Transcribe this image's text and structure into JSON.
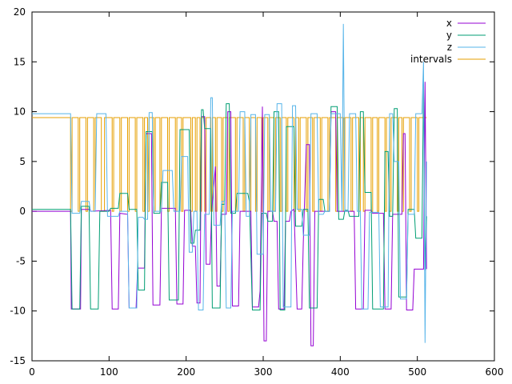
{
  "chart_data": {
    "type": "line",
    "title": "",
    "xlabel": "",
    "ylabel": "",
    "xlim": [
      0,
      600
    ],
    "ylim": [
      -15,
      20
    ],
    "xticks": [
      0,
      100,
      200,
      300,
      400,
      500,
      600
    ],
    "yticks": [
      -15,
      -10,
      -5,
      0,
      5,
      10,
      15,
      20
    ],
    "grid": false,
    "legend_position": "top-right",
    "series": [
      {
        "name": "x",
        "color": "#9400d3",
        "points": [
          [
            0,
            0
          ],
          [
            50,
            0
          ],
          [
            51,
            -9.8
          ],
          [
            63,
            -9.8
          ],
          [
            64,
            0.2
          ],
          [
            75,
            0.2
          ],
          [
            76,
            0
          ],
          [
            102,
            0.1
          ],
          [
            104,
            -9.8
          ],
          [
            112,
            -9.8
          ],
          [
            114,
            -0.2
          ],
          [
            124,
            -0.3
          ],
          [
            126,
            -9.7
          ],
          [
            135,
            -9.7
          ],
          [
            137,
            -5.7
          ],
          [
            146,
            -5.7
          ],
          [
            148,
            7.8
          ],
          [
            155,
            7.8
          ],
          [
            157,
            -9.4
          ],
          [
            166,
            -9.4
          ],
          [
            168,
            0.3
          ],
          [
            186,
            0.3
          ],
          [
            188,
            -9.3
          ],
          [
            196,
            -9.3
          ],
          [
            198,
            0.1
          ],
          [
            206,
            0.1
          ],
          [
            208,
            -3.5
          ],
          [
            212,
            -3.5
          ],
          [
            214,
            -9.2
          ],
          [
            218,
            -9.2
          ],
          [
            220,
            9.5
          ],
          [
            224,
            9.5
          ],
          [
            226,
            -5.3
          ],
          [
            231,
            -5.3
          ],
          [
            233,
            0
          ],
          [
            238,
            4.5
          ],
          [
            240,
            -7.5
          ],
          [
            244,
            -7.5
          ],
          [
            246,
            -0.3
          ],
          [
            252,
            -0.3
          ],
          [
            254,
            10
          ],
          [
            258,
            10
          ],
          [
            260,
            -9.5
          ],
          [
            268,
            -9.5
          ],
          [
            270,
            0
          ],
          [
            284,
            0
          ],
          [
            286,
            -9.6
          ],
          [
            294,
            -9.6
          ],
          [
            296,
            -8
          ],
          [
            299,
            10.5
          ],
          [
            301,
            -13
          ],
          [
            304,
            -13
          ],
          [
            306,
            0
          ],
          [
            312,
            0
          ],
          [
            314,
            -1
          ],
          [
            318,
            -1
          ],
          [
            320,
            -9.8
          ],
          [
            327,
            -9.8
          ],
          [
            329,
            -1
          ],
          [
            334,
            -1
          ],
          [
            336,
            0
          ],
          [
            340,
            0.2
          ],
          [
            344,
            -9.8
          ],
          [
            350,
            -9.8
          ],
          [
            352,
            -3.2
          ],
          [
            356,
            6.7
          ],
          [
            360,
            6.7
          ],
          [
            362,
            -13.5
          ],
          [
            365,
            -13.5
          ],
          [
            367,
            0
          ],
          [
            386,
            0
          ],
          [
            388,
            10
          ],
          [
            394,
            10
          ],
          [
            396,
            0
          ],
          [
            418,
            0
          ],
          [
            420,
            -9.8
          ],
          [
            430,
            -9.8
          ],
          [
            432,
            0.1
          ],
          [
            440,
            0.1
          ],
          [
            442,
            -0.2
          ],
          [
            456,
            -0.2
          ],
          [
            458,
            -9.8
          ],
          [
            466,
            -9.8
          ],
          [
            468,
            -0.3
          ],
          [
            480,
            -0.3
          ],
          [
            482,
            7.8
          ],
          [
            484,
            7.8
          ],
          [
            486,
            -9.9
          ],
          [
            494,
            -9.9
          ],
          [
            496,
            -5.8
          ],
          [
            508,
            -5.8
          ],
          [
            510,
            13
          ],
          [
            512,
            -5.8
          ]
        ]
      },
      {
        "name": "y",
        "color": "#009e73",
        "points": [
          [
            0,
            0.2
          ],
          [
            50,
            0.2
          ],
          [
            52,
            -9.8
          ],
          [
            62,
            -9.8
          ],
          [
            64,
            0.5
          ],
          [
            74,
            0.5
          ],
          [
            76,
            -9.8
          ],
          [
            86,
            -9.8
          ],
          [
            88,
            0
          ],
          [
            100,
            0
          ],
          [
            102,
            0.3
          ],
          [
            112,
            0.3
          ],
          [
            114,
            1.8
          ],
          [
            124,
            1.8
          ],
          [
            126,
            0.2
          ],
          [
            136,
            0.2
          ],
          [
            138,
            -7.9
          ],
          [
            146,
            -7.9
          ],
          [
            148,
            8
          ],
          [
            156,
            8
          ],
          [
            158,
            -0.2
          ],
          [
            166,
            -0.2
          ],
          [
            168,
            2.9
          ],
          [
            176,
            2.9
          ],
          [
            178,
            -8.9
          ],
          [
            190,
            -8.9
          ],
          [
            192,
            8.2
          ],
          [
            204,
            8.2
          ],
          [
            206,
            -3.2
          ],
          [
            210,
            -3.2
          ],
          [
            212,
            -1.9
          ],
          [
            218,
            -1.9
          ],
          [
            220,
            10.2
          ],
          [
            222,
            10.2
          ],
          [
            224,
            8.3
          ],
          [
            232,
            8.3
          ],
          [
            234,
            -9.7
          ],
          [
            244,
            -9.7
          ],
          [
            246,
            0.7
          ],
          [
            250,
            0.7
          ],
          [
            252,
            10.8
          ],
          [
            256,
            10.8
          ],
          [
            258,
            -0.2
          ],
          [
            264,
            -0.2
          ],
          [
            266,
            1.8
          ],
          [
            280,
            1.8
          ],
          [
            282,
            1
          ],
          [
            286,
            -9.9
          ],
          [
            296,
            -9.9
          ],
          [
            298,
            -0.2
          ],
          [
            304,
            -0.2
          ],
          [
            306,
            -1
          ],
          [
            312,
            -1
          ],
          [
            314,
            10
          ],
          [
            320,
            10
          ],
          [
            322,
            -9.9
          ],
          [
            328,
            -9.9
          ],
          [
            330,
            8.5
          ],
          [
            340,
            8.5
          ],
          [
            342,
            -1.5
          ],
          [
            350,
            -1.5
          ],
          [
            352,
            0.2
          ],
          [
            358,
            0.2
          ],
          [
            360,
            -9.7
          ],
          [
            370,
            -9.7
          ],
          [
            372,
            1.2
          ],
          [
            378,
            1.2
          ],
          [
            380,
            0
          ],
          [
            386,
            0
          ],
          [
            388,
            10.5
          ],
          [
            396,
            10.5
          ],
          [
            398,
            -0.8
          ],
          [
            404,
            -0.8
          ],
          [
            406,
            0.1
          ],
          [
            410,
            0.1
          ],
          [
            412,
            -0.5
          ],
          [
            424,
            -0.5
          ],
          [
            426,
            10
          ],
          [
            430,
            10
          ],
          [
            432,
            1.9
          ],
          [
            440,
            1.9
          ],
          [
            442,
            -9.8
          ],
          [
            456,
            -9.8
          ],
          [
            458,
            6
          ],
          [
            462,
            6
          ],
          [
            464,
            -0.5
          ],
          [
            468,
            -0.5
          ],
          [
            470,
            10.3
          ],
          [
            474,
            10.3
          ],
          [
            476,
            -8.6
          ],
          [
            486,
            -8.6
          ],
          [
            488,
            0.2
          ],
          [
            496,
            0.2
          ],
          [
            498,
            -2.7
          ],
          [
            506,
            -2.7
          ],
          [
            508,
            12.8
          ],
          [
            510,
            -5.9
          ],
          [
            512,
            -0.5
          ]
        ]
      },
      {
        "name": "z",
        "color": "#56b4e9",
        "points": [
          [
            0,
            9.8
          ],
          [
            50,
            9.8
          ],
          [
            52,
            -0.2
          ],
          [
            62,
            -0.2
          ],
          [
            64,
            1
          ],
          [
            74,
            1
          ],
          [
            76,
            0
          ],
          [
            82,
            0
          ],
          [
            84,
            9.8
          ],
          [
            96,
            9.8
          ],
          [
            98,
            -0.5
          ],
          [
            112,
            -0.5
          ],
          [
            114,
            0
          ],
          [
            124,
            0
          ],
          [
            126,
            -9.7
          ],
          [
            136,
            -9.7
          ],
          [
            138,
            -0.6
          ],
          [
            144,
            -0.6
          ],
          [
            146,
            -0.8
          ],
          [
            150,
            -0.8
          ],
          [
            152,
            9.9
          ],
          [
            156,
            9.9
          ],
          [
            158,
            0
          ],
          [
            168,
            0
          ],
          [
            170,
            4.1
          ],
          [
            182,
            4.1
          ],
          [
            184,
            0
          ],
          [
            192,
            0
          ],
          [
            194,
            5.5
          ],
          [
            202,
            5.5
          ],
          [
            204,
            -4.1
          ],
          [
            208,
            -4.1
          ],
          [
            210,
            0
          ],
          [
            214,
            0
          ],
          [
            216,
            -9.9
          ],
          [
            222,
            -9.9
          ],
          [
            224,
            -0.3
          ],
          [
            230,
            -0.3
          ],
          [
            232,
            11.4
          ],
          [
            234,
            11.4
          ],
          [
            236,
            -1.4
          ],
          [
            244,
            -1.4
          ],
          [
            246,
            1
          ],
          [
            250,
            1
          ],
          [
            252,
            -9.7
          ],
          [
            258,
            -9.7
          ],
          [
            260,
            0
          ],
          [
            268,
            0
          ],
          [
            270,
            10
          ],
          [
            276,
            10
          ],
          [
            278,
            -0.5
          ],
          [
            282,
            -0.5
          ],
          [
            284,
            9.7
          ],
          [
            290,
            9.7
          ],
          [
            292,
            -4.3
          ],
          [
            300,
            -4.3
          ],
          [
            302,
            9.7
          ],
          [
            308,
            9.7
          ],
          [
            310,
            0
          ],
          [
            316,
            0
          ],
          [
            318,
            10.8
          ],
          [
            324,
            10.8
          ],
          [
            326,
            -9.6
          ],
          [
            336,
            -9.6
          ],
          [
            338,
            10.6
          ],
          [
            342,
            10.6
          ],
          [
            344,
            0.2
          ],
          [
            350,
            0.2
          ],
          [
            352,
            -2.4
          ],
          [
            360,
            -2.4
          ],
          [
            362,
            9.8
          ],
          [
            370,
            9.8
          ],
          [
            372,
            -0.3
          ],
          [
            378,
            -0.3
          ],
          [
            380,
            0
          ],
          [
            386,
            0
          ],
          [
            388,
            9.8
          ],
          [
            400,
            9.8
          ],
          [
            402,
            0
          ],
          [
            404,
            18.8
          ],
          [
            406,
            0
          ],
          [
            410,
            0
          ],
          [
            412,
            9.8
          ],
          [
            420,
            9.8
          ],
          [
            422,
            0
          ],
          [
            426,
            0
          ],
          [
            428,
            -9.8
          ],
          [
            436,
            -9.8
          ],
          [
            438,
            -0.1
          ],
          [
            450,
            -0.1
          ],
          [
            452,
            -9.6
          ],
          [
            462,
            -9.6
          ],
          [
            464,
            9.8
          ],
          [
            468,
            9.8
          ],
          [
            470,
            5
          ],
          [
            476,
            5
          ],
          [
            478,
            -8.8
          ],
          [
            486,
            -8.8
          ],
          [
            488,
            -0.3
          ],
          [
            496,
            -0.3
          ],
          [
            498,
            9.8
          ],
          [
            506,
            9.8
          ],
          [
            508,
            15
          ],
          [
            510,
            -13.2
          ],
          [
            512,
            5
          ]
        ]
      },
      {
        "name": "intervals",
        "color": "#e69f00",
        "type": "step",
        "high": 9.4,
        "low": 0,
        "transitions": [
          0,
          50,
          52,
          60,
          62,
          70,
          72,
          80,
          82,
          90,
          94,
          104,
          106,
          114,
          116,
          124,
          126,
          134,
          136,
          144,
          146,
          150,
          152,
          158,
          160,
          166,
          168,
          176,
          178,
          186,
          188,
          194,
          196,
          206,
          208,
          212,
          214,
          218,
          220,
          224,
          226,
          232,
          234,
          238,
          240,
          246,
          248,
          254,
          256,
          264,
          266,
          274,
          276,
          282,
          284,
          290,
          292,
          298,
          300,
          306,
          308,
          314,
          316,
          322,
          324,
          330,
          332,
          340,
          342,
          346,
          348,
          356,
          358,
          364,
          366,
          374,
          376,
          384,
          386,
          394,
          396,
          404,
          406,
          414,
          416,
          424,
          426,
          430,
          432,
          440,
          442,
          448,
          450,
          458,
          460,
          464,
          466,
          474,
          476,
          480,
          482,
          490,
          492,
          500,
          502,
          512
        ],
        "start_value": 9.4
      }
    ]
  }
}
